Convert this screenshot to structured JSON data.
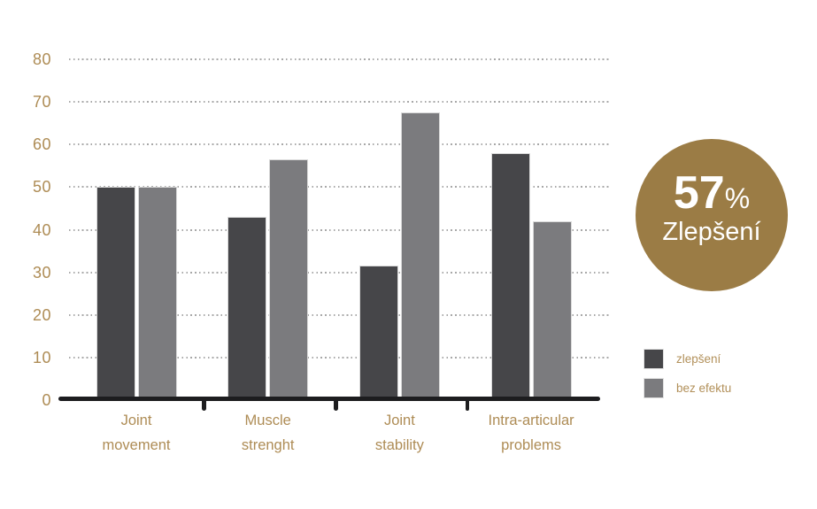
{
  "chart_data": {
    "type": "bar",
    "categories": [
      "Joint\nmovement",
      "Muscle\nstrenght",
      "Joint\nstability",
      "Intra-articular\nproblems"
    ],
    "series": [
      {
        "name": "zlepšení",
        "color": "#464649",
        "values": [
          50,
          43,
          31.5,
          58
        ]
      },
      {
        "name": "bez efektu",
        "color": "#7b7b7e",
        "values": [
          50,
          56.5,
          67.5,
          42
        ]
      }
    ],
    "title": "",
    "xlabel": "",
    "ylabel": "",
    "ylim": [
      0,
      80
    ],
    "ytick_step": 10,
    "ytick_labels": [
      "0",
      "10",
      "20",
      "30",
      "40",
      "50",
      "60",
      "70",
      "80"
    ],
    "grid": "horizontal-dotted",
    "legend_position": "right-bottom",
    "tick_label_color": "#ae8c55",
    "gridline_color": "#a8a8a8",
    "axis_color": "#1d1d1f"
  },
  "badge": {
    "value": "57",
    "unit": "%",
    "label": "Zlepšení",
    "bg_color": "#9b7c45",
    "text_color": "#ffffff"
  }
}
